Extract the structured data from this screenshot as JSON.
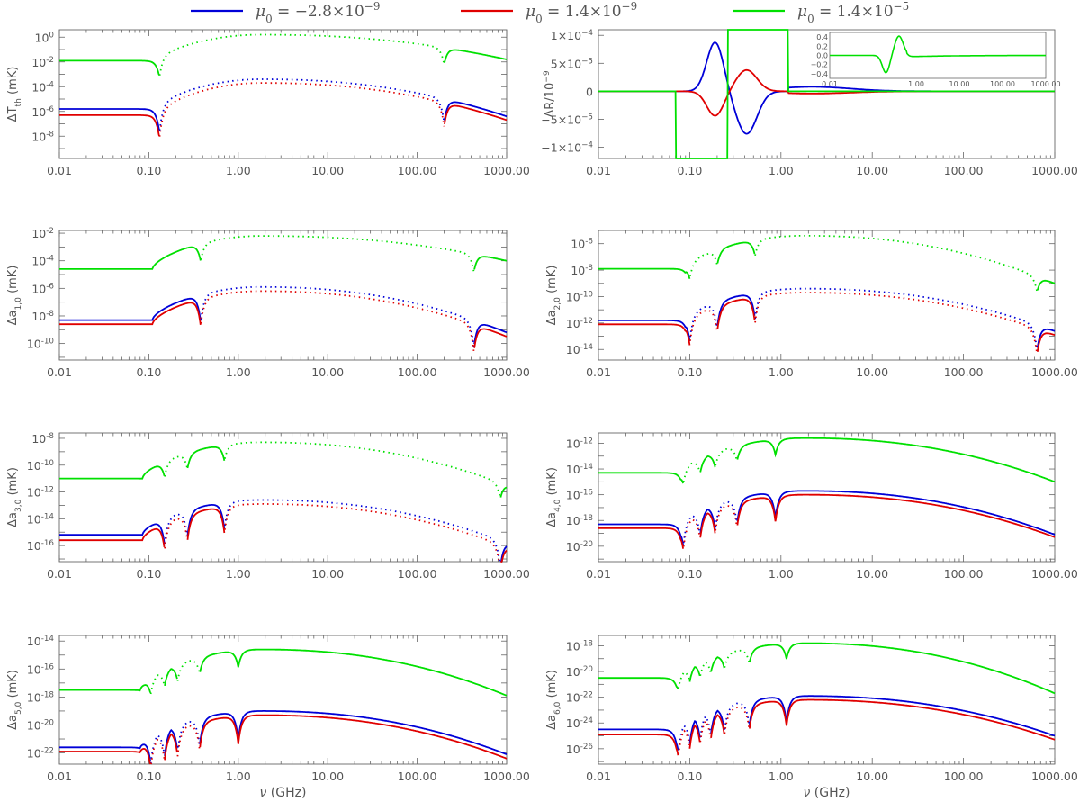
{
  "legend": [
    {
      "math": "μ",
      "sub": "0",
      "label": " = −2.8×10",
      "exp": "−9",
      "color": "#0000d8"
    },
    {
      "math": "μ",
      "sub": "0",
      "label": " = 1.4×10",
      "exp": "−9",
      "color": "#e00000"
    },
    {
      "math": "μ",
      "sub": "0",
      "label": " = 1.4×10",
      "exp": "−5",
      "color": "#00e000"
    }
  ],
  "xlabel": {
    "math": "ν",
    "unit": " (GHz)"
  },
  "chart_data": [
    {
      "type": "line",
      "id": "dT",
      "ylabel": {
        "pre": "ΔT",
        "sub": "th",
        "post": " (mK)"
      },
      "xscale": "log",
      "xlim": [
        0.01,
        1000
      ],
      "xticks": [
        "0.01",
        "0.10",
        "1.00",
        "10.00",
        "100.00",
        "1000.00"
      ],
      "ylim_log10": [
        -9.8,
        0.6
      ],
      "yticks": [
        {
          "e": 0,
          "label": "10",
          "exp": "0"
        },
        {
          "e": -2,
          "label": "10",
          "exp": "-2"
        },
        {
          "e": -4,
          "label": "10",
          "exp": "-4"
        },
        {
          "e": -6,
          "label": "10",
          "exp": "-6"
        },
        {
          "e": -8,
          "label": "10",
          "exp": "-8"
        }
      ],
      "series": [
        {
          "name": "mu0=-2.8e-9",
          "color": "#0000d8",
          "flat": -5.8,
          "peak": -3.4,
          "end": -6.4,
          "dips": [
            0.132,
            200
          ],
          "rise": 0.13,
          "dipDepth": 2.0,
          "style": "mixed"
        },
        {
          "name": "mu0=1.4e-9",
          "color": "#e00000",
          "flat": -6.3,
          "peak": -3.7,
          "end": -6.7,
          "dips": [
            0.132,
            200
          ],
          "rise": 0.13,
          "dipDepth": 2.0,
          "style": "mixed"
        },
        {
          "name": "mu0=1.4e-5",
          "color": "#00e000",
          "flat": -1.9,
          "peak": 0.2,
          "end": -1.8,
          "dips": [
            0.132,
            200
          ],
          "rise": 0.13,
          "dipDepth": 1.4,
          "style": "mixed"
        }
      ]
    },
    {
      "type": "line",
      "id": "dR",
      "ylabel": {
        "pre": "ΔR/10",
        "sup": "−9",
        "post": ""
      },
      "xscale": "log",
      "xlim": [
        0.01,
        1000
      ],
      "xticks": [
        "0.01",
        "0.10",
        "1.00",
        "10.00",
        "100.00",
        "1000.00"
      ],
      "ylim": [
        -0.00012,
        0.00011
      ],
      "yticks": [
        {
          "v": 0.0001,
          "label": "1×10",
          "exp": "−4"
        },
        {
          "v": 5e-05,
          "label": "5×10",
          "exp": "−5"
        },
        {
          "v": 0,
          "label": "0",
          "exp": ""
        },
        {
          "v": -5e-05,
          "label": "−5×10",
          "exp": "−5"
        },
        {
          "v": -0.0001,
          "label": "−1×10",
          "exp": "−4"
        }
      ],
      "series": [
        {
          "name": "mu0=-2.8e-9",
          "color": "#0000d8",
          "sign": 1
        },
        {
          "name": "mu0=1.4e-9",
          "color": "#e00000",
          "sign": -0.5
        },
        {
          "name": "mu0=1.4e-5",
          "color": "#00e000",
          "sign": 0
        }
      ],
      "inset": {
        "xticks": [
          "0.01",
          "1.00",
          "10.00",
          "100.00",
          "1000.00"
        ],
        "yticks": [
          "0.4",
          "0.2",
          "0.0",
          "−0.2",
          "−0.4"
        ],
        "ylim": [
          -0.5,
          0.5
        ]
      }
    },
    {
      "type": "line",
      "id": "a10",
      "ylabel": {
        "pre": "Δa",
        "sub": "1,0",
        "post": " (mK)"
      },
      "xscale": "log",
      "xlim": [
        0.01,
        1000
      ],
      "xticks": [
        "0.01",
        "0.10",
        "1.00",
        "10.00",
        "100.00",
        "1000.00"
      ],
      "ylim_log10": [
        -11.2,
        -1.8
      ],
      "yticks": [
        {
          "e": -2,
          "label": "10",
          "exp": "-2"
        },
        {
          "e": -4,
          "label": "10",
          "exp": "-4"
        },
        {
          "e": -6,
          "label": "10",
          "exp": "-6"
        },
        {
          "e": -8,
          "label": "10",
          "exp": "-8"
        },
        {
          "e": -10,
          "label": "10",
          "exp": "-10"
        }
      ],
      "series": [
        {
          "name": "mu0=-2.8e-9",
          "color": "#0000d8",
          "flat": -8.3,
          "peak": -5.9,
          "end": -9.2,
          "dips": [
            0.38,
            430
          ],
          "rise": 0.11,
          "dipDepth": 2.0
        },
        {
          "name": "mu0=1.4e-9",
          "color": "#e00000",
          "flat": -8.6,
          "peak": -6.2,
          "end": -9.5,
          "dips": [
            0.38,
            430
          ],
          "rise": 0.11,
          "dipDepth": 2.0
        },
        {
          "name": "mu0=1.4e-5",
          "color": "#00e000",
          "flat": -4.6,
          "peak": -2.2,
          "end": -4.0,
          "dips": [
            0.38,
            430
          ],
          "rise": 0.11,
          "dipDepth": 1.3
        }
      ]
    },
    {
      "type": "line",
      "id": "a20",
      "ylabel": {
        "pre": "Δa",
        "sub": "2,0",
        "post": " (mK)"
      },
      "xscale": "log",
      "xlim": [
        0.01,
        1000
      ],
      "xticks": [
        "0.01",
        "0.10",
        "1.00",
        "10.00",
        "100.00",
        "1000.00"
      ],
      "ylim_log10": [
        -14.8,
        -5.0
      ],
      "yticks": [
        {
          "e": -6,
          "label": "10",
          "exp": "-6"
        },
        {
          "e": -8,
          "label": "10",
          "exp": "-8"
        },
        {
          "e": -10,
          "label": "10",
          "exp": "-10"
        },
        {
          "e": -12,
          "label": "10",
          "exp": "-12"
        },
        {
          "e": -14,
          "label": "10",
          "exp": "-14"
        }
      ],
      "series": [
        {
          "name": "mu0=-2.8e-9",
          "color": "#0000d8",
          "flat": -11.8,
          "peak": -9.4,
          "end": -12.6,
          "dips": [
            0.1,
            0.2,
            0.52,
            640
          ],
          "rise": 0.09,
          "dipDepth": 2.0
        },
        {
          "name": "mu0=1.4e-9",
          "color": "#e00000",
          "flat": -12.1,
          "peak": -9.7,
          "end": -12.9,
          "dips": [
            0.1,
            0.2,
            0.52,
            640
          ],
          "rise": 0.09,
          "dipDepth": 2.0
        },
        {
          "name": "mu0=1.4e-5",
          "color": "#00e000",
          "flat": -7.9,
          "peak": -5.4,
          "end": -9.0,
          "dips": [
            0.1,
            0.2,
            0.52,
            640
          ],
          "rise": 0.09,
          "dipDepth": 1.2
        }
      ]
    },
    {
      "type": "line",
      "id": "a30",
      "ylabel": {
        "pre": "Δa",
        "sub": "3,0",
        "post": " (mK)"
      },
      "xscale": "log",
      "xlim": [
        0.01,
        1000
      ],
      "xticks": [
        "0.01",
        "0.10",
        "1.00",
        "10.00",
        "100.00",
        "1000.00"
      ],
      "ylim_log10": [
        -17.2,
        -7.6
      ],
      "yticks": [
        {
          "e": -8,
          "label": "10",
          "exp": "-8"
        },
        {
          "e": -10,
          "label": "10",
          "exp": "-10"
        },
        {
          "e": -12,
          "label": "10",
          "exp": "-12"
        },
        {
          "e": -14,
          "label": "10",
          "exp": "-14"
        },
        {
          "e": -16,
          "label": "10",
          "exp": "-16"
        }
      ],
      "series": [
        {
          "name": "mu0=-2.8e-9",
          "color": "#0000d8",
          "flat": -15.2,
          "peak": -12.6,
          "end": -15.8,
          "dips": [
            0.15,
            0.27,
            0.7,
            850
          ],
          "rise": 0.085,
          "dipDepth": 2.0
        },
        {
          "name": "mu0=1.4e-9",
          "color": "#e00000",
          "flat": -15.6,
          "peak": -12.9,
          "end": -16.1,
          "dips": [
            0.15,
            0.27,
            0.7,
            850
          ],
          "rise": 0.085,
          "dipDepth": 2.0
        },
        {
          "name": "mu0=1.4e-5",
          "color": "#00e000",
          "flat": -11.0,
          "peak": -8.3,
          "end": -11.5,
          "dips": [
            0.15,
            0.27,
            0.7,
            850
          ],
          "rise": 0.085,
          "dipDepth": 1.2
        }
      ]
    },
    {
      "type": "line",
      "id": "a40",
      "ylabel": {
        "pre": "Δa",
        "sub": "4,0",
        "post": " (mK)"
      },
      "xscale": "log",
      "xlim": [
        0.01,
        1000
      ],
      "xticks": [
        "0.01",
        "0.10",
        "1.00",
        "10.00",
        "100.00",
        "1000.00"
      ],
      "ylim_log10": [
        -21.2,
        -11.2
      ],
      "yticks": [
        {
          "e": -12,
          "label": "10",
          "exp": "-12"
        },
        {
          "e": -14,
          "label": "10",
          "exp": "-14"
        },
        {
          "e": -16,
          "label": "10",
          "exp": "-16"
        },
        {
          "e": -18,
          "label": "10",
          "exp": "-18"
        },
        {
          "e": -20,
          "label": "10",
          "exp": "-20"
        }
      ],
      "series": [
        {
          "name": "mu0=-2.8e-9",
          "color": "#0000d8",
          "flat": -18.3,
          "peak": -15.7,
          "end": -19.1,
          "dips": [
            0.085,
            0.13,
            0.19,
            0.33,
            0.87
          ],
          "rise": 0.08,
          "dipDepth": 2.0
        },
        {
          "name": "mu0=1.4e-9",
          "color": "#e00000",
          "flat": -18.6,
          "peak": -16.0,
          "end": -19.3,
          "dips": [
            0.085,
            0.13,
            0.19,
            0.33,
            0.87
          ],
          "rise": 0.08,
          "dipDepth": 2.0
        },
        {
          "name": "mu0=1.4e-5",
          "color": "#00e000",
          "flat": -14.3,
          "peak": -11.6,
          "end": -15.0,
          "dips": [
            0.085,
            0.13,
            0.19,
            0.33,
            0.87
          ],
          "rise": 0.08,
          "dipDepth": 1.2
        }
      ]
    },
    {
      "type": "line",
      "id": "a50",
      "ylabel": {
        "pre": "Δa",
        "sub": "5,0",
        "post": " (mK)"
      },
      "xscale": "log",
      "xlim": [
        0.01,
        1000
      ],
      "xticks": [
        "0.01",
        "0.10",
        "1.00",
        "10.00",
        "100.00",
        "1000.00"
      ],
      "ylim_log10": [
        -22.8,
        -13.6
      ],
      "yticks": [
        {
          "e": -14,
          "label": "10",
          "exp": "-14"
        },
        {
          "e": -16,
          "label": "10",
          "exp": "-16"
        },
        {
          "e": -18,
          "label": "10",
          "exp": "-18"
        },
        {
          "e": -20,
          "label": "10",
          "exp": "-20"
        },
        {
          "e": -22,
          "label": "10",
          "exp": "-22"
        }
      ],
      "series": [
        {
          "name": "mu0=-2.8e-9",
          "color": "#0000d8",
          "flat": -21.6,
          "peak": -19.0,
          "end": -22.1,
          "dips": [
            0.105,
            0.15,
            0.21,
            0.37,
            1.0
          ],
          "rise": 0.08,
          "dipDepth": 2.0
        },
        {
          "name": "mu0=1.4e-9",
          "color": "#e00000",
          "flat": -21.9,
          "peak": -19.3,
          "end": -22.4,
          "dips": [
            0.105,
            0.15,
            0.21,
            0.37,
            1.0
          ],
          "rise": 0.08,
          "dipDepth": 2.0
        },
        {
          "name": "mu0=1.4e-5",
          "color": "#00e000",
          "flat": -17.5,
          "peak": -14.6,
          "end": -17.9,
          "dips": [
            0.105,
            0.15,
            0.21,
            0.37,
            1.0
          ],
          "rise": 0.08,
          "dipDepth": 1.2
        }
      ]
    },
    {
      "type": "line",
      "id": "a60",
      "ylabel": {
        "pre": "Δa",
        "sub": "6,0",
        "post": " (mK)"
      },
      "xscale": "log",
      "xlim": [
        0.01,
        1000
      ],
      "xticks": [
        "0.01",
        "0.10",
        "1.00",
        "10.00",
        "100.00",
        "1000.00"
      ],
      "ylim_log10": [
        -27.2,
        -17.2
      ],
      "yticks": [
        {
          "e": -18,
          "label": "10",
          "exp": "-18"
        },
        {
          "e": -20,
          "label": "10",
          "exp": "-20"
        },
        {
          "e": -22,
          "label": "10",
          "exp": "-22"
        },
        {
          "e": -24,
          "label": "10",
          "exp": "-24"
        },
        {
          "e": -26,
          "label": "10",
          "exp": "-26"
        }
      ],
      "series": [
        {
          "name": "mu0=-2.8e-9",
          "color": "#0000d8",
          "flat": -24.5,
          "peak": -21.9,
          "end": -25.0,
          "dips": [
            0.075,
            0.1,
            0.13,
            0.17,
            0.24,
            0.45,
            1.15
          ],
          "rise": 0.072,
          "dipDepth": 2.0
        },
        {
          "name": "mu0=1.4e-9",
          "color": "#e00000",
          "flat": -24.9,
          "peak": -22.2,
          "end": -25.3,
          "dips": [
            0.075,
            0.1,
            0.13,
            0.17,
            0.24,
            0.45,
            1.15
          ],
          "rise": 0.072,
          "dipDepth": 2.0
        },
        {
          "name": "mu0=1.4e-5",
          "color": "#00e000",
          "flat": -20.5,
          "peak": -17.8,
          "end": -21.7,
          "dips": [
            0.075,
            0.1,
            0.13,
            0.17,
            0.24,
            0.45,
            1.15
          ],
          "rise": 0.072,
          "dipDepth": 1.2
        }
      ]
    }
  ]
}
